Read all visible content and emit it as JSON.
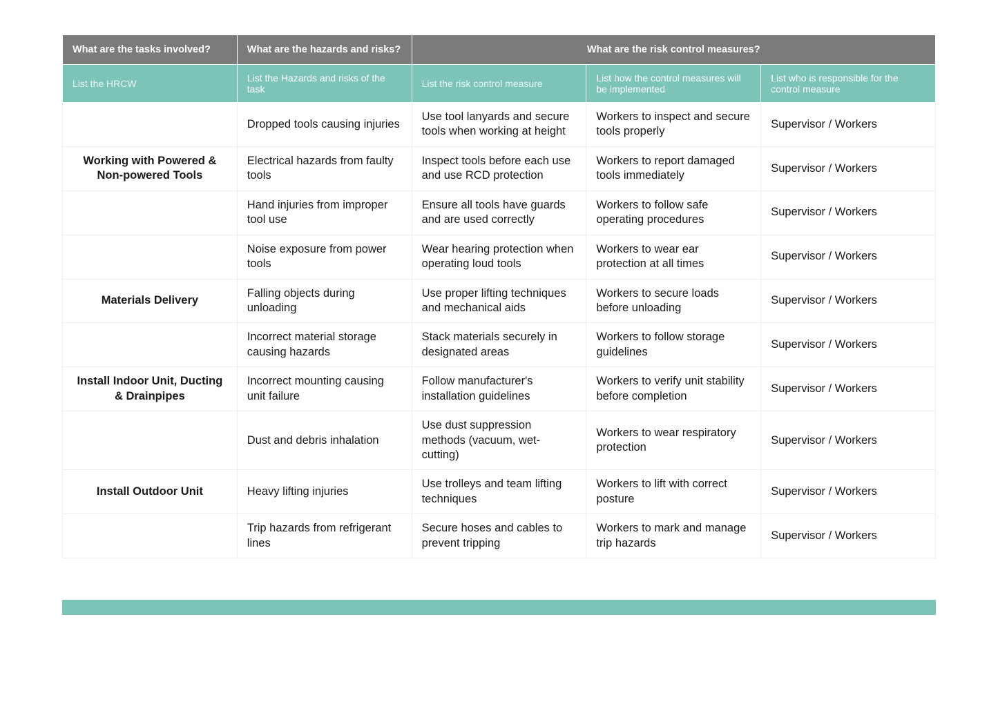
{
  "colors": {
    "header_bg": "#7b7b7b",
    "subheader_bg": "#7cc3b8",
    "header_text": "#ffffff",
    "body_text": "#1a1a1a",
    "row_border": "#eeeeee",
    "page_bg": "#ffffff"
  },
  "typography": {
    "header_fontsize": 14.5,
    "subheader_fontsize": 14,
    "body_fontsize": 16.5,
    "task_fontweight": 700
  },
  "header1": {
    "col1": "What are the tasks involved?",
    "col2": "What are the hazards and risks?",
    "col3": "What are the risk control measures?"
  },
  "header2": {
    "col1": "List the HRCW",
    "col2": "List the Hazards and risks of the task",
    "col3": "List the risk control measure",
    "col4": "List how the control measures will be implemented",
    "col5": "List who is responsible for the control measure"
  },
  "rows": [
    {
      "task": "",
      "hazard": "Dropped tools causing injuries",
      "control": "Use tool lanyards and secure tools when working at height",
      "implement": "Workers to inspect and secure tools properly",
      "responsible": "Supervisor / Workers"
    },
    {
      "task": "Working with Powered & Non-powered Tools",
      "hazard": "Electrical hazards from faulty tools",
      "control": "Inspect tools before each use and use RCD protection",
      "implement": "Workers to report damaged tools immediately",
      "responsible": "Supervisor / Workers"
    },
    {
      "task": "",
      "hazard": "Hand injuries from improper tool use",
      "control": "Ensure all tools have guards and are used correctly",
      "implement": "Workers to follow safe operating procedures",
      "responsible": "Supervisor / Workers"
    },
    {
      "task": "",
      "hazard": "Noise exposure from power tools",
      "control": "Wear hearing protection when operating loud tools",
      "implement": "Workers to wear ear protection at all times",
      "responsible": "Supervisor / Workers"
    },
    {
      "task": "Materials Delivery",
      "hazard": "Falling objects during unloading",
      "control": "Use proper lifting techniques and mechanical aids",
      "implement": "Workers to secure loads before unloading",
      "responsible": "Supervisor / Workers"
    },
    {
      "task": "",
      "hazard": "Incorrect material storage causing hazards",
      "control": "Stack materials securely in designated areas",
      "implement": "Workers to follow storage guidelines",
      "responsible": "Supervisor / Workers"
    },
    {
      "task": "Install Indoor Unit, Ducting & Drainpipes",
      "hazard": "Incorrect mounting causing unit failure",
      "control": "Follow manufacturer's installation guidelines",
      "implement": "Workers to verify unit stability before completion",
      "responsible": "Supervisor / Workers"
    },
    {
      "task": "",
      "hazard": "Dust and debris inhalation",
      "control": "Use dust suppression methods (vacuum, wet-cutting)",
      "implement": "Workers to wear respiratory protection",
      "responsible": "Supervisor / Workers"
    },
    {
      "task": "Install Outdoor Unit",
      "hazard": "Heavy lifting injuries",
      "control": "Use trolleys and team lifting techniques",
      "implement": "Workers to lift with correct posture",
      "responsible": "Supervisor / Workers"
    },
    {
      "task": "",
      "hazard": "Trip hazards from refrigerant lines",
      "control": "Secure hoses and cables to prevent tripping",
      "implement": "Workers to mark and manage trip hazards",
      "responsible": "Supervisor / Workers"
    }
  ]
}
